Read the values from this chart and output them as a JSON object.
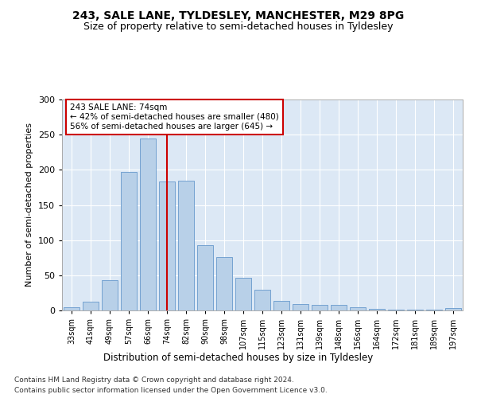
{
  "title": "243, SALE LANE, TYLDESLEY, MANCHESTER, M29 8PG",
  "subtitle": "Size of property relative to semi-detached houses in Tyldesley",
  "xlabel": "Distribution of semi-detached houses by size in Tyldesley",
  "ylabel": "Number of semi-detached properties",
  "categories": [
    "33sqm",
    "41sqm",
    "49sqm",
    "57sqm",
    "66sqm",
    "74sqm",
    "82sqm",
    "90sqm",
    "98sqm",
    "107sqm",
    "115sqm",
    "123sqm",
    "131sqm",
    "139sqm",
    "148sqm",
    "156sqm",
    "164sqm",
    "172sqm",
    "181sqm",
    "189sqm",
    "197sqm"
  ],
  "values": [
    4,
    13,
    43,
    197,
    244,
    183,
    184,
    93,
    76,
    46,
    29,
    14,
    9,
    8,
    8,
    4,
    2,
    1,
    1,
    1,
    3
  ],
  "bar_color": "#b8d0e8",
  "bar_edge_color": "#6699cc",
  "highlight_index": 5,
  "highlight_line_color": "#cc0000",
  "annotation_text": "243 SALE LANE: 74sqm\n← 42% of semi-detached houses are smaller (480)\n56% of semi-detached houses are larger (645) →",
  "annotation_box_color": "#cc0000",
  "footer_line1": "Contains HM Land Registry data © Crown copyright and database right 2024.",
  "footer_line2": "Contains public sector information licensed under the Open Government Licence v3.0.",
  "ylim": [
    0,
    300
  ],
  "yticks": [
    0,
    50,
    100,
    150,
    200,
    250,
    300
  ],
  "plot_bg_color": "#dce8f5",
  "title_fontsize": 10,
  "subtitle_fontsize": 9
}
